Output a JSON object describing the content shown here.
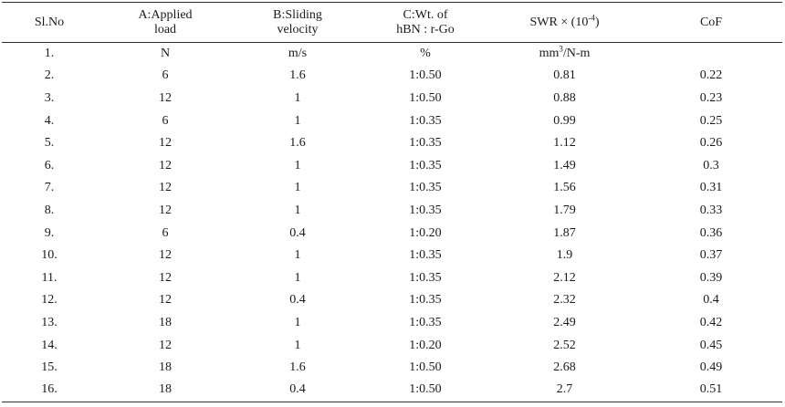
{
  "table": {
    "headers": {
      "slno": "Sl.No",
      "applied_load": [
        "A:Applied",
        "load"
      ],
      "sliding_velocity": [
        "B:Sliding",
        "velocity"
      ],
      "wt_ratio": [
        "C:Wt. of",
        "hBN : r-Go"
      ],
      "swr": {
        "prefix": "SWR × (10",
        "exp": "-4",
        "suffix": ")"
      },
      "cof": "CoF"
    },
    "units_row": {
      "slno": "1.",
      "applied_load": "N",
      "sliding_velocity": "m/s",
      "wt_ratio": "%",
      "swr": {
        "base": "mm",
        "exp": "3",
        "suffix": "/N-m"
      },
      "cof": ""
    },
    "rows": [
      [
        "2.",
        "6",
        "1.6",
        "1:0.50",
        "0.81",
        "0.22"
      ],
      [
        "3.",
        "12",
        "1",
        "1:0.50",
        "0.88",
        "0.23"
      ],
      [
        "4.",
        "6",
        "1",
        "1:0.35",
        "0.99",
        "0.25"
      ],
      [
        "5.",
        "12",
        "1.6",
        "1:0.35",
        "1.12",
        "0.26"
      ],
      [
        "6.",
        "12",
        "1",
        "1:0.35",
        "1.49",
        "0.3"
      ],
      [
        "7.",
        "12",
        "1",
        "1:0.35",
        "1.56",
        "0.31"
      ],
      [
        "8.",
        "12",
        "1",
        "1:0.35",
        "1.79",
        "0.33"
      ],
      [
        "9.",
        "6",
        "0.4",
        "1:0.20",
        "1.87",
        "0.36"
      ],
      [
        "10.",
        "12",
        "1",
        "1:0.35",
        "1.9",
        "0.37"
      ],
      [
        "11.",
        "12",
        "1",
        "1:0.35",
        "2.12",
        "0.39"
      ],
      [
        "12.",
        "12",
        "0.4",
        "1:0.35",
        "2.32",
        "0.4"
      ],
      [
        "13.",
        "18",
        "1",
        "1:0.35",
        "2.49",
        "0.42"
      ],
      [
        "14.",
        "12",
        "1",
        "1:0.20",
        "2.52",
        "0.45"
      ],
      [
        "15.",
        "18",
        "1.6",
        "1:0.50",
        "2.68",
        "0.49"
      ],
      [
        "16.",
        "18",
        "0.4",
        "1:0.50",
        "2.7",
        "0.51"
      ]
    ]
  }
}
